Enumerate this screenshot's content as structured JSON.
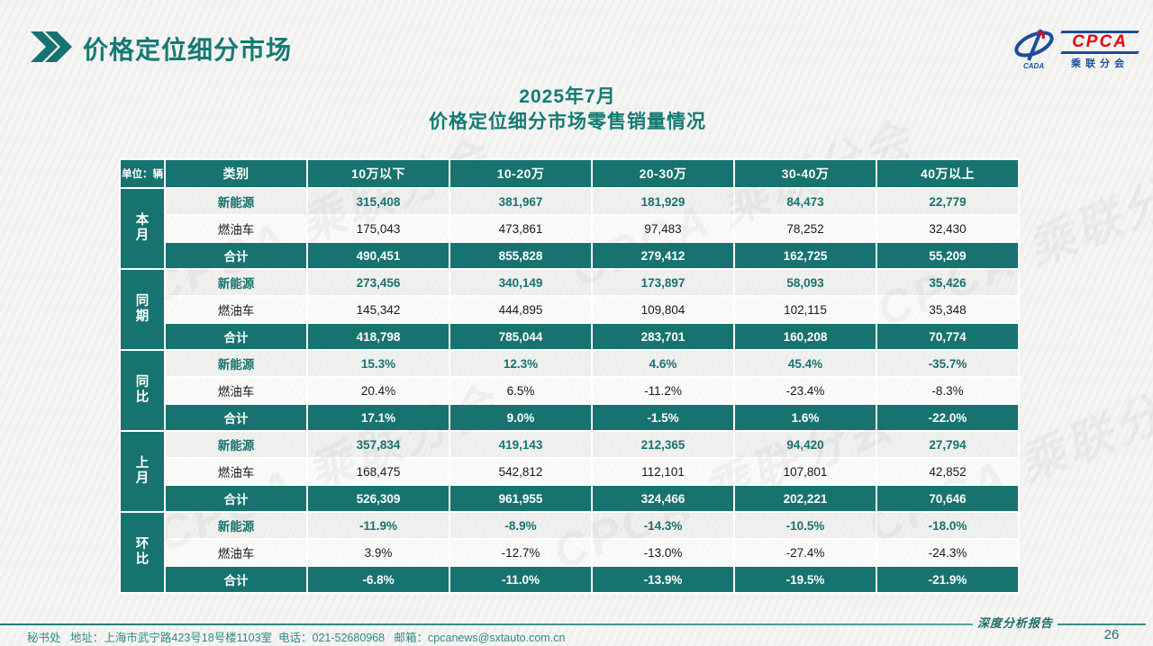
{
  "header": {
    "title": "价格定位细分市场",
    "logo": {
      "cpca": "CPCA",
      "cada": "CADA",
      "subtitle": "乘联分会"
    }
  },
  "subtitle": {
    "line1": "2025年7月",
    "line2": "价格定位细分市场零售销量情况"
  },
  "table": {
    "unit_label": "单位：辆",
    "category_header": "类别",
    "columns": [
      "10万以下",
      "10-20万",
      "20-30万",
      "30-40万",
      "40万以上"
    ],
    "groups": [
      {
        "label": "本月",
        "rows": [
          {
            "label": "新能源",
            "type": "nev",
            "values": [
              "315,408",
              "381,967",
              "181,929",
              "84,473",
              "22,779"
            ]
          },
          {
            "label": "燃油车",
            "type": "fuel",
            "values": [
              "175,043",
              "473,861",
              "97,483",
              "78,252",
              "32,430"
            ]
          },
          {
            "label": "合计",
            "type": "total",
            "values": [
              "490,451",
              "855,828",
              "279,412",
              "162,725",
              "55,209"
            ]
          }
        ]
      },
      {
        "label": "同期",
        "rows": [
          {
            "label": "新能源",
            "type": "nev",
            "values": [
              "273,456",
              "340,149",
              "173,897",
              "58,093",
              "35,426"
            ]
          },
          {
            "label": "燃油车",
            "type": "fuel",
            "values": [
              "145,342",
              "444,895",
              "109,804",
              "102,115",
              "35,348"
            ]
          },
          {
            "label": "合计",
            "type": "total",
            "values": [
              "418,798",
              "785,044",
              "283,701",
              "160,208",
              "70,774"
            ]
          }
        ]
      },
      {
        "label": "同比",
        "rows": [
          {
            "label": "新能源",
            "type": "nev",
            "values": [
              "15.3%",
              "12.3%",
              "4.6%",
              "45.4%",
              "-35.7%"
            ]
          },
          {
            "label": "燃油车",
            "type": "fuel",
            "values": [
              "20.4%",
              "6.5%",
              "-11.2%",
              "-23.4%",
              "-8.3%"
            ]
          },
          {
            "label": "合计",
            "type": "total",
            "values": [
              "17.1%",
              "9.0%",
              "-1.5%",
              "1.6%",
              "-22.0%"
            ]
          }
        ]
      },
      {
        "label": "上月",
        "rows": [
          {
            "label": "新能源",
            "type": "nev",
            "values": [
              "357,834",
              "419,143",
              "212,365",
              "94,420",
              "27,794"
            ]
          },
          {
            "label": "燃油车",
            "type": "fuel",
            "values": [
              "168,475",
              "542,812",
              "112,101",
              "107,801",
              "42,852"
            ]
          },
          {
            "label": "合计",
            "type": "total",
            "values": [
              "526,309",
              "961,955",
              "324,466",
              "202,221",
              "70,646"
            ]
          }
        ]
      },
      {
        "label": "环比",
        "rows": [
          {
            "label": "新能源",
            "type": "nev",
            "values": [
              "-11.9%",
              "-8.9%",
              "-14.3%",
              "-10.5%",
              "-18.0%"
            ]
          },
          {
            "label": "燃油车",
            "type": "fuel",
            "values": [
              "3.9%",
              "-12.7%",
              "-13.0%",
              "-27.4%",
              "-24.3%"
            ]
          },
          {
            "label": "合计",
            "type": "total",
            "values": [
              "-6.8%",
              "-11.0%",
              "-13.9%",
              "-19.5%",
              "-21.9%"
            ]
          }
        ]
      }
    ]
  },
  "watermark_text": "CPCA 乘联分会",
  "footer": {
    "contact": "秘书处   地址：上海市武宁路423号18号楼1103室  电话：021-52680968   邮箱：cpcanews@sxtauto.com.cn",
    "report_label": "深度分析报告",
    "page_number": "26"
  },
  "colors": {
    "teal": "#17736F",
    "title_teal": "#147A74",
    "logo_blue": "#1B4E9B",
    "logo_red": "#E60012"
  }
}
